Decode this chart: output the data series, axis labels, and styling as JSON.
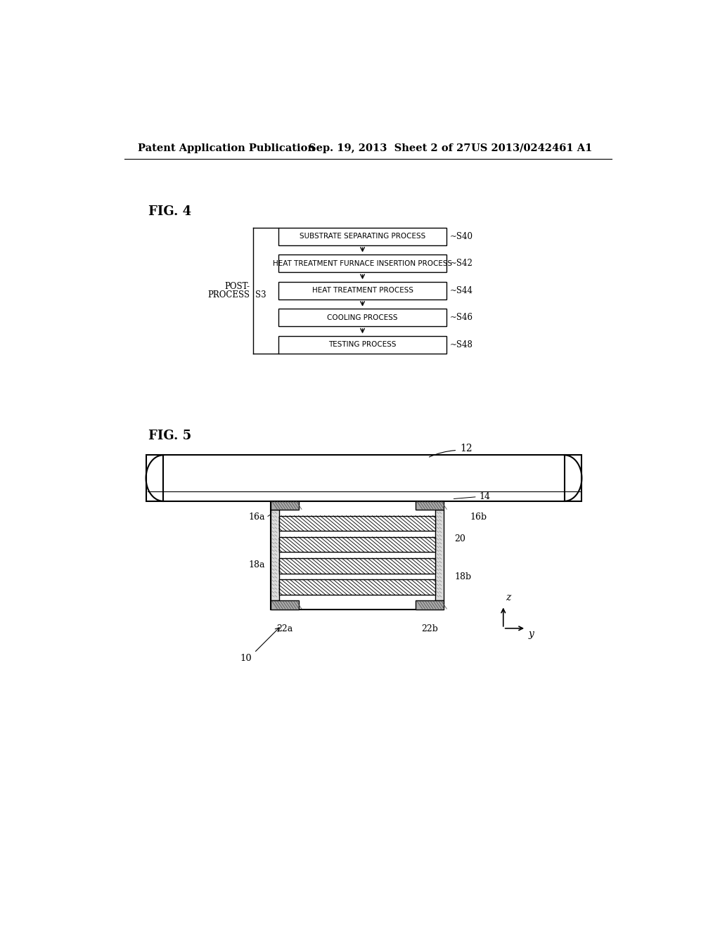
{
  "header_left": "Patent Application Publication",
  "header_mid": "Sep. 19, 2013  Sheet 2 of 27",
  "header_right": "US 2013/0242461 A1",
  "fig4_label": "FIG. 4",
  "fig5_label": "FIG. 5",
  "flowchart_boxes": [
    {
      "text": "SUBSTRATE SEPARATING PROCESS",
      "step": "S40"
    },
    {
      "text": "HEAT TREATMENT FURNACE INSERTION PROCESS",
      "step": "S42"
    },
    {
      "text": "HEAT TREATMENT PROCESS",
      "step": "S44"
    },
    {
      "text": "COOLING PROCESS",
      "step": "S46"
    },
    {
      "text": "TESTING PROCESS",
      "step": "S48"
    }
  ],
  "post_process_label": "POST-\nPROCESS",
  "post_process_id": "S3",
  "bg_color": "#ffffff",
  "line_color": "#000000",
  "text_color": "#000000"
}
